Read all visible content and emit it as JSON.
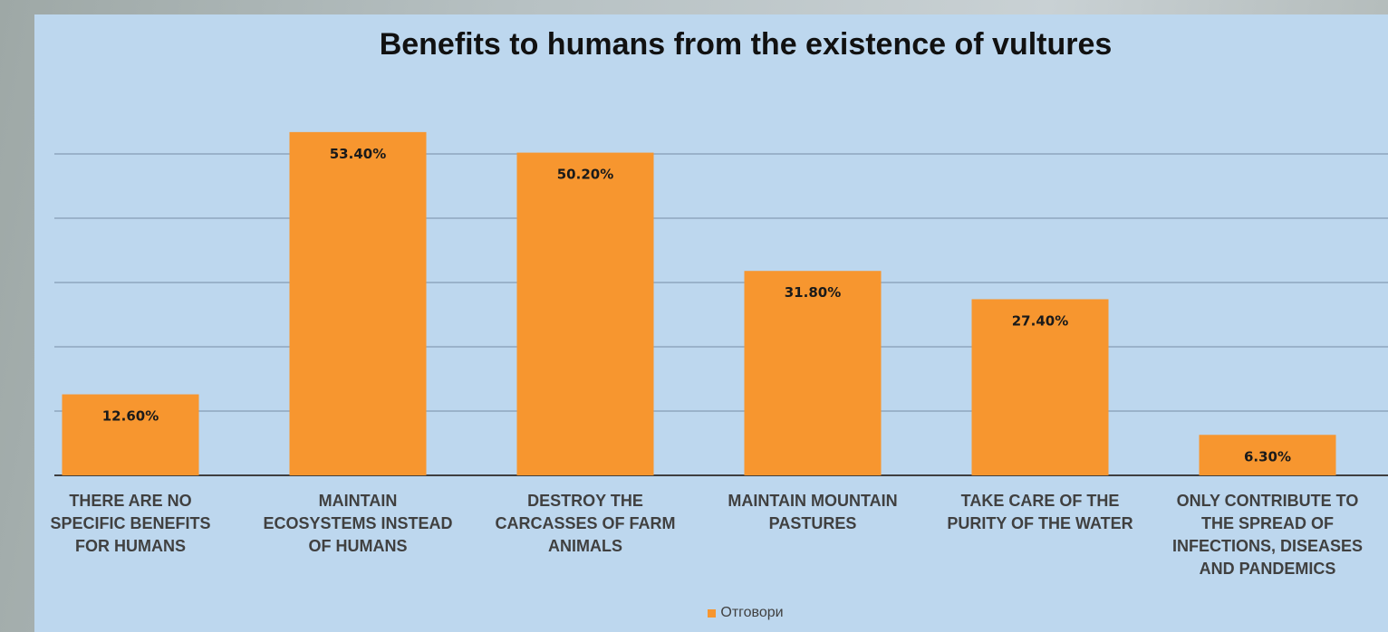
{
  "chart_data": {
    "type": "bar",
    "title": "Benefits to humans from the existence of vultures",
    "categories": [
      [
        "THERE ARE NO",
        "SPECIFIC BENEFITS",
        "FOR HUMANS"
      ],
      [
        "MAINTAIN",
        "ECOSYSTEMS INSTEAD",
        "OF HUMANS"
      ],
      [
        "DESTROY THE",
        "CARCASSES OF FARM",
        "ANIMALS"
      ],
      [
        "MAINTAIN MOUNTAIN",
        "PASTURES"
      ],
      [
        "TAKE CARE OF THE",
        "PURITY OF THE WATER"
      ],
      [
        "ONLY CONTRIBUTE TO",
        "THE SPREAD OF",
        "INFECTIONS, DISEASES",
        "AND PANDEMICS"
      ]
    ],
    "series": [
      {
        "name": "Отговори",
        "values": [
          12.6,
          53.4,
          50.2,
          31.8,
          27.4,
          6.3
        ],
        "labels": [
          "12.60%",
          "53.40%",
          "50.20%",
          "31.80%",
          "27.40%",
          "6.30%"
        ]
      }
    ],
    "ylim": [
      0,
      60
    ],
    "gridlines": [
      10,
      20,
      30,
      40,
      50
    ],
    "grid": true,
    "legend": "bottom",
    "colors": {
      "bar": "#f7962f",
      "background": "#bdd7ee",
      "grid": "#8fa6bd",
      "axis": "#3f3f3f"
    }
  }
}
